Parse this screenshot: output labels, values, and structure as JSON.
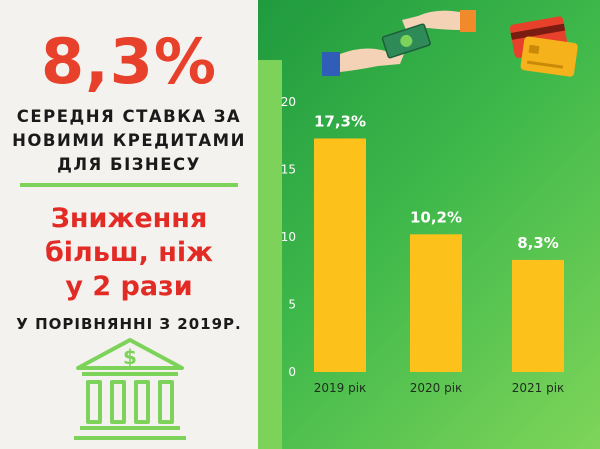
{
  "left": {
    "headline": "8,3%",
    "subtitle_lines": [
      "СЕРЕДНЯ СТАВКА ЗА",
      "НОВИМИ КРЕДИТАМИ",
      "ДЛЯ БІЗНЕСУ"
    ],
    "red_lines": [
      "Зниження",
      "більш, ніж",
      "у 2 рази"
    ],
    "comparison": "У ПОРІВНЯННІ З 2019Р."
  },
  "colors": {
    "accent_red": "#e8412b",
    "accent_green": "#7dd35a",
    "bar": "#fcc21b"
  },
  "icons": [
    "bank-icon",
    "money-exchange-icon",
    "credit-cards-icon"
  ],
  "chart_data": {
    "type": "bar",
    "categories": [
      "2019 рік",
      "2020 рік",
      "2021 рік"
    ],
    "values": [
      17.3,
      10.2,
      8.3
    ],
    "data_labels": [
      "17,3%",
      "10,2%",
      "8,3%"
    ],
    "yticks": [
      0,
      5,
      10,
      15,
      20
    ],
    "ylim": [
      0,
      20
    ],
    "grid": false,
    "title": "",
    "xlabel": "",
    "ylabel": ""
  }
}
